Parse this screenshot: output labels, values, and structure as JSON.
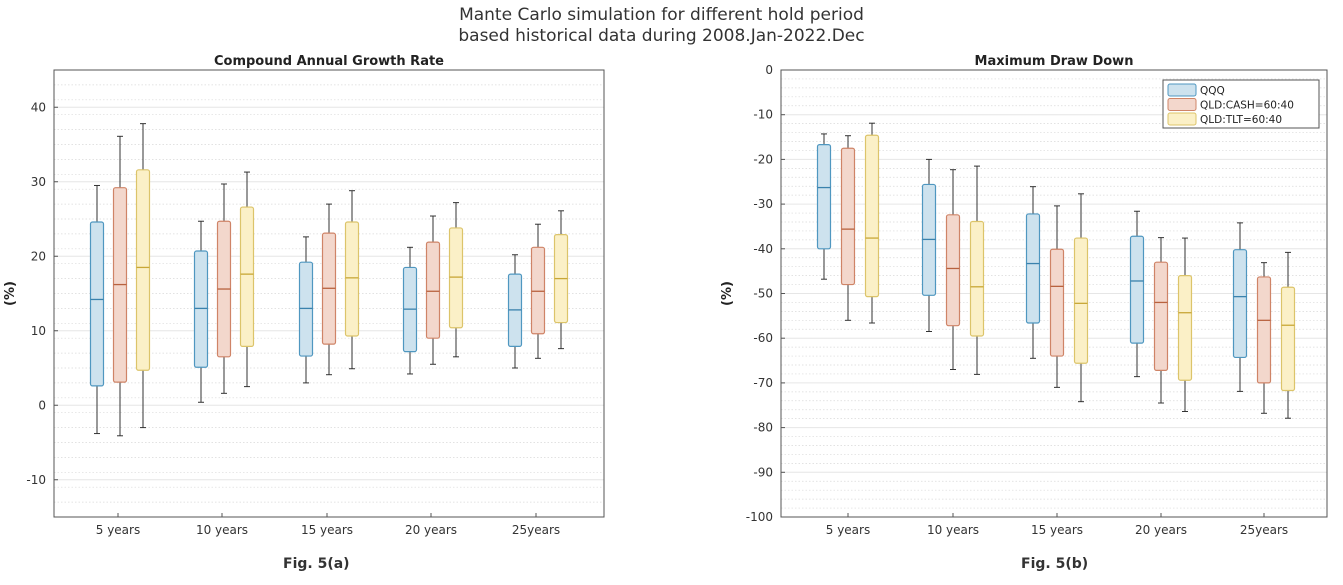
{
  "suptitle": {
    "line1": "Mante Carlo simulation for different hold period",
    "line2": "based historical data during 2008.Jan-2022.Dec"
  },
  "legend": [
    "QQQ",
    "QLD:CASH=60:40",
    "QLD:TLT=60:40"
  ],
  "colors": {
    "QQQ": {
      "fill": "#cde2ee",
      "edge": "#4f97c0",
      "median": "#3a82ad"
    },
    "CASH": {
      "fill": "#f3d7cc",
      "edge": "#cf8467",
      "median": "#b8623f"
    },
    "TLT": {
      "fill": "#fbf0c7",
      "edge": "#dcc46a",
      "median": "#c8a737"
    },
    "whisker": "#333333"
  },
  "chart_data": [
    {
      "type": "box",
      "title": "Compound Annual Growth Rate",
      "caption": "Fig. 5(a)",
      "xlabel": "",
      "ylabel": "(%)",
      "ylim": [
        -15,
        45
      ],
      "yticks": [
        -10,
        0,
        10,
        20,
        30,
        40
      ],
      "grid": true,
      "categories": [
        "5 years",
        "10 years",
        "15 years",
        "20 years",
        "25years"
      ],
      "series": [
        {
          "name": "QQQ",
          "boxes": [
            {
              "min": -3.8,
              "q1": 2.6,
              "median": 14.2,
              "q3": 24.6,
              "max": 29.5
            },
            {
              "min": 0.4,
              "q1": 5.1,
              "median": 13.0,
              "q3": 20.7,
              "max": 24.7
            },
            {
              "min": 3.0,
              "q1": 6.6,
              "median": 13.0,
              "q3": 19.2,
              "max": 22.6
            },
            {
              "min": 4.2,
              "q1": 7.2,
              "median": 12.9,
              "q3": 18.5,
              "max": 21.2
            },
            {
              "min": 5.0,
              "q1": 7.9,
              "median": 12.8,
              "q3": 17.6,
              "max": 20.2
            }
          ]
        },
        {
          "name": "QLD:CASH=60:40",
          "boxes": [
            {
              "min": -4.1,
              "q1": 3.1,
              "median": 16.2,
              "q3": 29.2,
              "max": 36.1
            },
            {
              "min": 1.6,
              "q1": 6.5,
              "median": 15.6,
              "q3": 24.7,
              "max": 29.7
            },
            {
              "min": 4.1,
              "q1": 8.2,
              "median": 15.7,
              "q3": 23.1,
              "max": 27.0
            },
            {
              "min": 5.5,
              "q1": 9.0,
              "median": 15.3,
              "q3": 21.9,
              "max": 25.4
            },
            {
              "min": 6.3,
              "q1": 9.6,
              "median": 15.3,
              "q3": 21.2,
              "max": 24.3
            }
          ]
        },
        {
          "name": "QLD:TLT=60:40",
          "boxes": [
            {
              "min": -3.0,
              "q1": 4.7,
              "median": 18.5,
              "q3": 31.6,
              "max": 37.8
            },
            {
              "min": 2.5,
              "q1": 7.9,
              "median": 17.6,
              "q3": 26.6,
              "max": 31.3
            },
            {
              "min": 4.9,
              "q1": 9.3,
              "median": 17.1,
              "q3": 24.6,
              "max": 28.8
            },
            {
              "min": 6.5,
              "q1": 10.4,
              "median": 17.2,
              "q3": 23.8,
              "max": 27.2
            },
            {
              "min": 7.6,
              "q1": 11.1,
              "median": 17.0,
              "q3": 22.9,
              "max": 26.1
            }
          ]
        }
      ]
    },
    {
      "type": "box",
      "title": "Maximum Draw Down",
      "caption": "Fig. 5(b)",
      "xlabel": "",
      "ylabel": "(%)",
      "ylim": [
        -100,
        0
      ],
      "yticks": [
        0,
        -10,
        -20,
        -30,
        -40,
        -50,
        -60,
        -70,
        -80,
        -90,
        -100
      ],
      "grid": true,
      "legend_position": "top-right",
      "categories": [
        "5 years",
        "10 years",
        "15 years",
        "20 years",
        "25years"
      ],
      "series": [
        {
          "name": "QQQ",
          "boxes": [
            {
              "min": -46.8,
              "q1": -40.0,
              "median": -26.3,
              "q3": -16.7,
              "max": -14.3
            },
            {
              "min": -58.5,
              "q1": -50.4,
              "median": -37.9,
              "q3": -25.6,
              "max": -20.0
            },
            {
              "min": -64.5,
              "q1": -56.6,
              "median": -43.3,
              "q3": -32.2,
              "max": -26.1
            },
            {
              "min": -68.6,
              "q1": -61.1,
              "median": -47.2,
              "q3": -37.2,
              "max": -31.6
            },
            {
              "min": -71.9,
              "q1": -64.3,
              "median": -50.7,
              "q3": -40.2,
              "max": -34.2
            }
          ]
        },
        {
          "name": "QLD:CASH=60:40",
          "boxes": [
            {
              "min": -56.0,
              "q1": -48.0,
              "median": -35.6,
              "q3": -17.5,
              "max": -14.7
            },
            {
              "min": -67.0,
              "q1": -57.2,
              "median": -44.4,
              "q3": -32.4,
              "max": -22.3
            },
            {
              "min": -71.0,
              "q1": -64.0,
              "median": -48.4,
              "q3": -40.1,
              "max": -30.4
            },
            {
              "min": -74.5,
              "q1": -67.2,
              "median": -52.0,
              "q3": -43.0,
              "max": -37.5
            },
            {
              "min": -76.8,
              "q1": -70.0,
              "median": -56.0,
              "q3": -46.3,
              "max": -43.1
            }
          ]
        },
        {
          "name": "QLD:TLT=60:40",
          "boxes": [
            {
              "min": -56.6,
              "q1": -50.7,
              "median": -37.6,
              "q3": -14.6,
              "max": -11.9
            },
            {
              "min": -68.1,
              "q1": -59.5,
              "median": -48.5,
              "q3": -33.9,
              "max": -21.5
            },
            {
              "min": -74.2,
              "q1": -65.6,
              "median": -52.2,
              "q3": -37.6,
              "max": -27.7
            },
            {
              "min": -76.4,
              "q1": -69.4,
              "median": -54.3,
              "q3": -46.0,
              "max": -37.6
            },
            {
              "min": -77.9,
              "q1": -71.7,
              "median": -57.1,
              "q3": -48.6,
              "max": -40.8
            }
          ]
        }
      ]
    }
  ]
}
